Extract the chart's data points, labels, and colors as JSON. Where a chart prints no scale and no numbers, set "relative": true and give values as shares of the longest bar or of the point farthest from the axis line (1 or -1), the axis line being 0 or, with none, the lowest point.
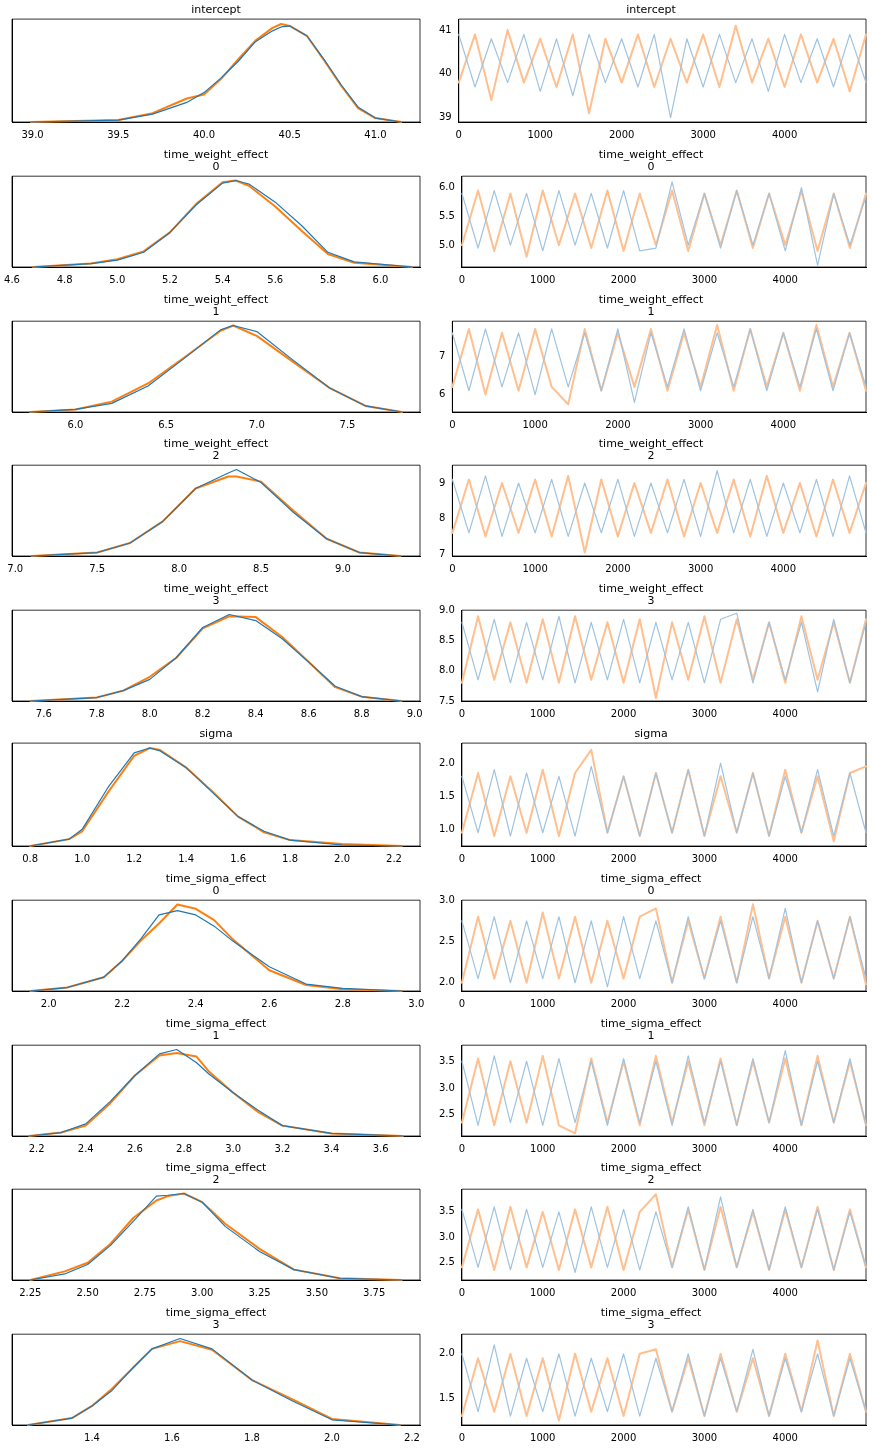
{
  "chart_data": [
    {
      "type": "line",
      "title": "intercept",
      "relative": true,
      "tick_labels": "x",
      "xlim": [
        38.88,
        41.26
      ],
      "xticks": [
        {
          "value": 39,
          "label": "39.0"
        },
        {
          "value": 39.5,
          "label": "39.5"
        },
        {
          "value": 40,
          "label": "40.0"
        },
        {
          "value": 40.5,
          "label": "40.5"
        },
        {
          "value": 41,
          "label": "41.0"
        }
      ],
      "x": [
        38.99,
        39.5,
        39.7,
        39.9,
        40.0,
        40.1,
        40.2,
        40.3,
        40.4,
        40.45,
        40.5,
        40.6,
        40.7,
        40.8,
        40.9,
        41.0,
        41.15
      ],
      "series": [
        {
          "color": "#1f77b4",
          "values": [
            0,
            0.02,
            0.08,
            0.2,
            0.3,
            0.45,
            0.62,
            0.82,
            0.93,
            0.97,
            0.98,
            0.88,
            0.64,
            0.38,
            0.15,
            0.04,
            0
          ]
        },
        {
          "color": "#ff7f0e",
          "values": [
            0,
            0.02,
            0.09,
            0.24,
            0.28,
            0.44,
            0.64,
            0.83,
            0.96,
            1.0,
            0.98,
            0.88,
            0.63,
            0.37,
            0.14,
            0.04,
            0
          ]
        }
      ]
    },
    {
      "type": "line",
      "title": "intercept",
      "xlim": [
        0,
        4999
      ],
      "xticks": [
        0,
        1000,
        2000,
        3000,
        4000
      ],
      "ylim": [
        38.9,
        41.25
      ],
      "yticks": [
        39,
        40,
        41
      ],
      "x": [
        0,
        200,
        400,
        600,
        800,
        1000,
        1200,
        1400,
        1600,
        1800,
        2000,
        2200,
        2400,
        2600,
        2800,
        3000,
        3200,
        3400,
        3600,
        3800,
        4000,
        4200,
        4400,
        4600,
        4800,
        4999
      ],
      "series": [
        {
          "color": "#9fc3e0",
          "values": [
            40.9,
            39.7,
            40.8,
            39.8,
            40.9,
            39.6,
            40.8,
            39.5,
            40.9,
            39.8,
            40.8,
            39.7,
            40.9,
            39.0,
            40.8,
            39.7,
            40.9,
            39.8,
            40.8,
            39.6,
            40.9,
            39.8,
            40.8,
            39.7,
            40.9,
            39.8
          ]
        },
        {
          "color": "#ffbf8e",
          "values": [
            39.8,
            40.9,
            39.4,
            41.0,
            39.8,
            40.8,
            39.7,
            40.9,
            39.1,
            40.8,
            39.8,
            40.9,
            39.7,
            40.8,
            39.8,
            40.9,
            39.7,
            41.1,
            39.8,
            40.8,
            39.7,
            40.9,
            39.8,
            40.8,
            39.6,
            40.9
          ]
        }
      ]
    },
    {
      "type": "line",
      "title": "time_weight_effect\n0",
      "relative": true,
      "tick_labels": "x",
      "xlim": [
        4.6,
        6.15
      ],
      "xticks": [
        {
          "value": 4.6,
          "label": "4.6"
        },
        {
          "value": 4.8,
          "label": "4.8"
        },
        {
          "value": 5,
          "label": "5.0"
        },
        {
          "value": 5.2,
          "label": "5.2"
        },
        {
          "value": 5.4,
          "label": "5.4"
        },
        {
          "value": 5.6,
          "label": "5.6"
        },
        {
          "value": 5.8,
          "label": "5.8"
        },
        {
          "value": 6,
          "label": "6.0"
        }
      ],
      "x": [
        4.68,
        4.9,
        5.0,
        5.1,
        5.2,
        5.3,
        5.4,
        5.45,
        5.5,
        5.6,
        5.7,
        5.8,
        5.9,
        6.12
      ],
      "series": [
        {
          "color": "#1f77b4",
          "values": [
            0,
            0.04,
            0.08,
            0.17,
            0.4,
            0.72,
            0.97,
            1.0,
            0.96,
            0.75,
            0.48,
            0.17,
            0.06,
            0
          ]
        },
        {
          "color": "#ff7f0e",
          "values": [
            0,
            0.04,
            0.09,
            0.18,
            0.4,
            0.73,
            0.98,
            1.0,
            0.94,
            0.7,
            0.42,
            0.15,
            0.05,
            0
          ]
        }
      ]
    },
    {
      "type": "line",
      "title": "time_weight_effect\n0",
      "xlim": [
        0,
        4999
      ],
      "xticks": [
        0,
        1000,
        2000,
        3000,
        4000
      ],
      "ylim": [
        4.62,
        6.2
      ],
      "yticks": [
        {
          "value": 5,
          "label": "5.0"
        },
        {
          "value": 5.5,
          "label": "5.5"
        },
        {
          "value": 6,
          "label": "6.0"
        }
      ],
      "x": [
        0,
        200,
        400,
        600,
        800,
        1000,
        1200,
        1400,
        1600,
        1800,
        2000,
        2200,
        2400,
        2600,
        2800,
        3000,
        3200,
        3400,
        3600,
        3800,
        4000,
        4200,
        4400,
        4600,
        4800,
        4999
      ],
      "series": [
        {
          "color": "#9fc3e0",
          "values": [
            5.9,
            4.95,
            5.95,
            5.0,
            5.9,
            4.9,
            5.95,
            5.0,
            5.9,
            4.95,
            5.95,
            4.9,
            4.95,
            6.1,
            5.0,
            5.9,
            4.95,
            5.95,
            5.0,
            5.9,
            4.9,
            6.0,
            4.65,
            5.9,
            5.0,
            5.85
          ]
        },
        {
          "color": "#ffbf8e",
          "values": [
            5.0,
            5.95,
            4.9,
            5.9,
            4.8,
            5.95,
            5.0,
            5.9,
            4.95,
            5.95,
            4.9,
            5.9,
            5.0,
            5.95,
            4.9,
            5.9,
            5.0,
            5.95,
            4.95,
            5.9,
            5.0,
            5.95,
            4.9,
            5.9,
            4.95,
            5.9
          ]
        }
      ]
    },
    {
      "type": "line",
      "title": "time_weight_effect\n1",
      "relative": true,
      "tick_labels": "x",
      "xlim": [
        5.65,
        7.9
      ],
      "xticks": [
        {
          "value": 6,
          "label": "6.0"
        },
        {
          "value": 6.5,
          "label": "6.5"
        },
        {
          "value": 7,
          "label": "7.0"
        },
        {
          "value": 7.5,
          "label": "7.5"
        }
      ],
      "x": [
        5.75,
        6.0,
        6.2,
        6.4,
        6.6,
        6.8,
        6.87,
        7.0,
        7.2,
        7.4,
        7.6,
        7.8
      ],
      "series": [
        {
          "color": "#1f77b4",
          "values": [
            0,
            0.03,
            0.1,
            0.3,
            0.62,
            0.95,
            1.0,
            0.93,
            0.6,
            0.28,
            0.07,
            0
          ]
        },
        {
          "color": "#ff7f0e",
          "values": [
            0,
            0.03,
            0.12,
            0.33,
            0.63,
            0.94,
            1.0,
            0.88,
            0.58,
            0.28,
            0.07,
            0
          ]
        }
      ]
    },
    {
      "type": "line",
      "title": "time_weight_effect\n1",
      "xlim": [
        0,
        4999
      ],
      "xticks": [
        0,
        1000,
        2000,
        3000,
        4000
      ],
      "ylim": [
        5.55,
        7.9
      ],
      "yticks": [
        6,
        7
      ],
      "x": [
        0,
        200,
        400,
        600,
        800,
        1000,
        1200,
        1400,
        1600,
        1800,
        2000,
        2200,
        2400,
        2600,
        2800,
        3000,
        3200,
        3400,
        3600,
        3800,
        4000,
        4200,
        4400,
        4600,
        4800,
        4999
      ],
      "series": [
        {
          "color": "#9fc3e0",
          "values": [
            7.6,
            6.1,
            7.7,
            6.2,
            7.6,
            6.0,
            7.7,
            6.2,
            7.6,
            6.1,
            7.7,
            5.8,
            7.6,
            6.2,
            7.7,
            6.1,
            7.6,
            6.2,
            7.7,
            6.1,
            7.6,
            6.2,
            7.7,
            6.1,
            7.6,
            6.2
          ]
        },
        {
          "color": "#ffbf8e",
          "values": [
            6.2,
            7.7,
            6.0,
            7.6,
            6.1,
            7.7,
            6.2,
            5.75,
            7.7,
            6.1,
            7.6,
            6.2,
            7.7,
            6.1,
            7.6,
            6.2,
            7.8,
            6.1,
            7.7,
            6.2,
            7.6,
            6.1,
            7.8,
            6.2,
            7.6,
            6.1
          ]
        }
      ]
    },
    {
      "type": "line",
      "title": "time_weight_effect\n2",
      "relative": true,
      "tick_labels": "x",
      "xlim": [
        6.98,
        9.47
      ],
      "xticks": [
        {
          "value": 7,
          "label": "7.0"
        },
        {
          "value": 7.5,
          "label": "7.5"
        },
        {
          "value": 8,
          "label": "8.0"
        },
        {
          "value": 8.5,
          "label": "8.5"
        },
        {
          "value": 9,
          "label": "9.0"
        }
      ],
      "x": [
        7.1,
        7.5,
        7.7,
        7.9,
        8.1,
        8.3,
        8.35,
        8.5,
        8.7,
        8.9,
        9.1,
        9.35
      ],
      "series": [
        {
          "color": "#1f77b4",
          "values": [
            0,
            0.04,
            0.15,
            0.4,
            0.78,
            0.96,
            1.0,
            0.85,
            0.5,
            0.2,
            0.04,
            0
          ]
        },
        {
          "color": "#ff7f0e",
          "values": [
            0,
            0.04,
            0.15,
            0.4,
            0.78,
            0.92,
            0.92,
            0.86,
            0.52,
            0.2,
            0.04,
            0
          ]
        }
      ]
    },
    {
      "type": "line",
      "title": "time_weight_effect\n2",
      "xlim": [
        0,
        4999
      ],
      "xticks": [
        0,
        1000,
        2000,
        3000,
        4000
      ],
      "ylim": [
        6.95,
        9.5
      ],
      "yticks": [
        7,
        8,
        9
      ],
      "x": [
        0,
        200,
        400,
        600,
        800,
        1000,
        1200,
        1400,
        1600,
        1800,
        2000,
        2200,
        2400,
        2600,
        2800,
        3000,
        3200,
        3400,
        3600,
        3800,
        4000,
        4200,
        4400,
        4600,
        4800,
        4999
      ],
      "series": [
        {
          "color": "#9fc3e0",
          "values": [
            9.1,
            7.6,
            9.2,
            7.5,
            9.0,
            7.6,
            9.1,
            7.5,
            9.0,
            7.6,
            9.1,
            7.5,
            9.0,
            7.6,
            9.1,
            7.5,
            9.35,
            7.6,
            9.1,
            7.5,
            9.0,
            7.6,
            9.1,
            7.5,
            9.2,
            7.6
          ]
        },
        {
          "color": "#ffbf8e",
          "values": [
            7.6,
            9.1,
            7.5,
            9.0,
            7.6,
            9.1,
            7.5,
            9.2,
            7.05,
            9.1,
            7.5,
            9.0,
            7.6,
            9.1,
            7.5,
            9.0,
            7.6,
            9.1,
            7.5,
            9.2,
            7.6,
            9.0,
            7.5,
            9.1,
            7.6,
            9.0
          ]
        }
      ]
    },
    {
      "type": "line",
      "title": "time_weight_effect\n3",
      "relative": true,
      "tick_labels": "x",
      "xlim": [
        7.48,
        9.02
      ],
      "xticks": [
        {
          "value": 7.6,
          "label": "7.6"
        },
        {
          "value": 7.8,
          "label": "7.8"
        },
        {
          "value": 8,
          "label": "8.0"
        },
        {
          "value": 8.2,
          "label": "8.2"
        },
        {
          "value": 8.4,
          "label": "8.4"
        },
        {
          "value": 8.6,
          "label": "8.6"
        },
        {
          "value": 8.8,
          "label": "8.8"
        },
        {
          "value": 9,
          "label": "9.0"
        }
      ],
      "x": [
        7.55,
        7.8,
        7.9,
        8.0,
        8.1,
        8.2,
        8.3,
        8.4,
        8.5,
        8.6,
        8.7,
        8.8,
        8.95
      ],
      "series": [
        {
          "color": "#1f77b4",
          "values": [
            0,
            0.04,
            0.12,
            0.25,
            0.5,
            0.85,
            1.0,
            0.93,
            0.72,
            0.45,
            0.17,
            0.05,
            0
          ]
        },
        {
          "color": "#ff7f0e",
          "values": [
            0,
            0.04,
            0.12,
            0.28,
            0.5,
            0.84,
            0.98,
            0.97,
            0.74,
            0.45,
            0.16,
            0.05,
            0
          ]
        }
      ]
    },
    {
      "type": "line",
      "title": "time_weight_effect\n3",
      "xlim": [
        0,
        4999
      ],
      "xticks": [
        0,
        1000,
        2000,
        3000,
        4000
      ],
      "ylim": [
        7.5,
        9.0
      ],
      "yticks": [
        {
          "value": 7.5,
          "label": "7.5"
        },
        {
          "value": 8,
          "label": "8.0"
        },
        {
          "value": 8.5,
          "label": "8.5"
        },
        {
          "value": 9,
          "label": "9.0"
        }
      ],
      "x": [
        0,
        200,
        400,
        600,
        800,
        1000,
        1200,
        1400,
        1600,
        1800,
        2000,
        2200,
        2400,
        2600,
        2800,
        3000,
        3200,
        3400,
        3600,
        3800,
        4000,
        4200,
        4400,
        4600,
        4800,
        4999
      ],
      "series": [
        {
          "color": "#9fc3e0",
          "values": [
            8.8,
            7.85,
            8.85,
            7.8,
            8.8,
            7.85,
            8.9,
            7.8,
            8.8,
            7.85,
            8.85,
            7.8,
            8.8,
            7.85,
            8.8,
            7.8,
            8.85,
            8.95,
            7.8,
            8.8,
            7.85,
            8.8,
            7.65,
            8.85,
            7.8,
            8.8
          ]
        },
        {
          "color": "#ffbf8e",
          "values": [
            7.8,
            8.9,
            7.85,
            8.8,
            7.8,
            8.85,
            7.8,
            8.9,
            7.85,
            8.8,
            7.8,
            8.85,
            7.55,
            8.8,
            7.85,
            8.9,
            7.8,
            8.85,
            7.85,
            8.8,
            7.8,
            8.9,
            7.85,
            8.8,
            7.8,
            8.85
          ]
        }
      ]
    },
    {
      "type": "line",
      "title": "sigma",
      "relative": true,
      "tick_labels": "x",
      "xlim": [
        0.73,
        2.3
      ],
      "xticks": [
        {
          "value": 0.8,
          "label": "0.8"
        },
        {
          "value": 1,
          "label": "1.0"
        },
        {
          "value": 1.2,
          "label": "1.2"
        },
        {
          "value": 1.4,
          "label": "1.4"
        },
        {
          "value": 1.6,
          "label": "1.6"
        },
        {
          "value": 1.8,
          "label": "1.8"
        },
        {
          "value": 2,
          "label": "2.0"
        },
        {
          "value": 2.2,
          "label": "2.2"
        }
      ],
      "x": [
        0.8,
        0.95,
        1.0,
        1.1,
        1.2,
        1.26,
        1.3,
        1.4,
        1.5,
        1.6,
        1.7,
        1.8,
        2.0,
        2.23
      ],
      "series": [
        {
          "color": "#1f77b4",
          "values": [
            0,
            0.07,
            0.17,
            0.6,
            0.95,
            1.0,
            0.97,
            0.8,
            0.55,
            0.3,
            0.15,
            0.06,
            0.01,
            0
          ]
        },
        {
          "color": "#ff7f0e",
          "values": [
            0,
            0.07,
            0.15,
            0.55,
            0.92,
            1.0,
            0.98,
            0.8,
            0.56,
            0.3,
            0.14,
            0.06,
            0.02,
            0
          ]
        }
      ]
    },
    {
      "type": "line",
      "title": "sigma",
      "xlim": [
        0,
        4999
      ],
      "xticks": [
        0,
        1000,
        2000,
        3000,
        4000
      ],
      "ylim": [
        0.75,
        2.3
      ],
      "yticks": [
        {
          "value": 1,
          "label": "1.0"
        },
        {
          "value": 1.5,
          "label": "1.5"
        },
        {
          "value": 2,
          "label": "2.0"
        }
      ],
      "x": [
        0,
        200,
        400,
        600,
        800,
        1000,
        1200,
        1400,
        1600,
        1800,
        2000,
        2200,
        2400,
        2600,
        2800,
        3000,
        3200,
        3400,
        3600,
        3800,
        4000,
        4200,
        4400,
        4600,
        4800,
        4999
      ],
      "series": [
        {
          "color": "#9fc3e0",
          "values": [
            1.8,
            0.95,
            1.9,
            0.9,
            1.85,
            0.95,
            1.8,
            0.9,
            1.95,
            0.95,
            1.8,
            0.9,
            1.85,
            0.95,
            1.9,
            0.9,
            2.0,
            0.95,
            1.85,
            0.9,
            1.8,
            0.95,
            1.9,
            0.9,
            1.85,
            0.95
          ]
        },
        {
          "color": "#ffbf8e",
          "values": [
            0.95,
            1.85,
            0.9,
            1.8,
            0.95,
            1.9,
            0.9,
            1.85,
            2.2,
            0.95,
            1.8,
            0.9,
            1.85,
            0.95,
            1.9,
            0.9,
            1.8,
            0.95,
            1.85,
            0.9,
            1.9,
            0.95,
            1.8,
            0.82,
            1.85,
            1.95
          ]
        }
      ]
    },
    {
      "type": "line",
      "title": "time_sigma_effect\n0",
      "relative": true,
      "tick_labels": "x",
      "xlim": [
        1.9,
        3.01
      ],
      "xticks": [
        {
          "value": 2,
          "label": "2.0"
        },
        {
          "value": 2.2,
          "label": "2.2"
        },
        {
          "value": 2.4,
          "label": "2.4"
        },
        {
          "value": 2.6,
          "label": "2.6"
        },
        {
          "value": 2.8,
          "label": "2.8"
        },
        {
          "value": 3,
          "label": "3.0"
        }
      ],
      "x": [
        1.95,
        2.05,
        2.15,
        2.2,
        2.25,
        2.3,
        2.35,
        2.4,
        2.45,
        2.5,
        2.6,
        2.7,
        2.8,
        2.96
      ],
      "series": [
        {
          "color": "#1f77b4",
          "values": [
            0,
            0.04,
            0.16,
            0.35,
            0.6,
            0.88,
            0.93,
            0.88,
            0.75,
            0.58,
            0.28,
            0.08,
            0.03,
            0
          ]
        },
        {
          "color": "#ff7f0e",
          "values": [
            0,
            0.04,
            0.16,
            0.35,
            0.58,
            0.78,
            1.0,
            0.95,
            0.82,
            0.6,
            0.24,
            0.07,
            0.02,
            0
          ]
        }
      ]
    },
    {
      "type": "line",
      "title": "time_sigma_effect\n0",
      "xlim": [
        0,
        4999
      ],
      "xticks": [
        0,
        1000,
        2000,
        3000,
        4000
      ],
      "ylim": [
        1.9,
        3.0
      ],
      "yticks": [
        {
          "value": 2,
          "label": "2.0"
        },
        {
          "value": 2.5,
          "label": "2.5"
        },
        {
          "value": 3,
          "label": "3.0"
        }
      ],
      "x": [
        0,
        200,
        400,
        600,
        800,
        1000,
        1200,
        1400,
        1600,
        1800,
        2000,
        2200,
        2400,
        2600,
        2800,
        3000,
        3200,
        3400,
        3600,
        3800,
        4000,
        4200,
        4400,
        4600,
        4800,
        4999
      ],
      "series": [
        {
          "color": "#9fc3e0",
          "values": [
            2.75,
            2.05,
            2.8,
            2.0,
            2.75,
            2.05,
            2.8,
            2.0,
            2.75,
            1.95,
            2.8,
            2.05,
            2.75,
            2.0,
            2.8,
            2.05,
            2.75,
            2.0,
            2.8,
            2.05,
            2.9,
            2.0,
            2.75,
            2.05,
            2.8,
            2.05
          ]
        },
        {
          "color": "#ffbf8e",
          "values": [
            2.0,
            2.8,
            2.05,
            2.75,
            2.0,
            2.85,
            2.05,
            2.8,
            2.0,
            2.75,
            2.05,
            2.8,
            2.9,
            2.0,
            2.75,
            2.05,
            2.8,
            2.0,
            2.95,
            2.05,
            2.8,
            2.0,
            2.75,
            2.05,
            2.8,
            1.98
          ]
        }
      ]
    },
    {
      "type": "line",
      "title": "time_sigma_effect\n1",
      "relative": true,
      "tick_labels": "x",
      "xlim": [
        2.1,
        3.76
      ],
      "xticks": [
        {
          "value": 2.2,
          "label": "2.2"
        },
        {
          "value": 2.4,
          "label": "2.4"
        },
        {
          "value": 2.6,
          "label": "2.6"
        },
        {
          "value": 2.8,
          "label": "2.8"
        },
        {
          "value": 3,
          "label": "3.0"
        },
        {
          "value": 3.2,
          "label": "3.2"
        },
        {
          "value": 3.4,
          "label": "3.4"
        },
        {
          "value": 3.6,
          "label": "3.6"
        }
      ],
      "x": [
        2.17,
        2.3,
        2.4,
        2.5,
        2.6,
        2.7,
        2.77,
        2.85,
        2.9,
        3.0,
        3.1,
        3.2,
        3.4,
        3.69
      ],
      "series": [
        {
          "color": "#1f77b4",
          "values": [
            0,
            0.04,
            0.14,
            0.4,
            0.7,
            0.95,
            1.0,
            0.85,
            0.72,
            0.5,
            0.3,
            0.12,
            0.03,
            0
          ]
        },
        {
          "color": "#ff7f0e",
          "values": [
            0,
            0.04,
            0.12,
            0.38,
            0.7,
            0.93,
            0.96,
            0.92,
            0.75,
            0.5,
            0.28,
            0.12,
            0.03,
            0
          ]
        }
      ]
    },
    {
      "type": "line",
      "title": "time_sigma_effect\n1",
      "xlim": [
        0,
        4999
      ],
      "xticks": [
        0,
        1000,
        2000,
        3000,
        4000
      ],
      "ylim": [
        2.1,
        3.8
      ],
      "yticks": [
        {
          "value": 2.5,
          "label": "2.5"
        },
        {
          "value": 3,
          "label": "3.0"
        },
        {
          "value": 3.5,
          "label": "3.5"
        }
      ],
      "x": [
        0,
        200,
        400,
        600,
        800,
        1000,
        1200,
        1400,
        1600,
        1800,
        2000,
        2200,
        2400,
        2600,
        2800,
        3000,
        3200,
        3400,
        3600,
        3800,
        4000,
        4200,
        4400,
        4600,
        4800,
        4999
      ],
      "series": [
        {
          "color": "#9fc3e0",
          "values": [
            3.5,
            2.3,
            3.6,
            2.35,
            3.5,
            2.3,
            3.55,
            2.35,
            3.5,
            2.3,
            3.55,
            2.35,
            3.5,
            2.3,
            3.6,
            2.35,
            3.5,
            2.3,
            3.55,
            2.35,
            3.7,
            2.3,
            3.5,
            2.35,
            3.55,
            2.3
          ]
        },
        {
          "color": "#ffbf8e",
          "values": [
            2.35,
            3.55,
            2.3,
            3.5,
            2.35,
            3.6,
            2.3,
            2.15,
            3.55,
            2.35,
            3.5,
            2.3,
            3.6,
            2.35,
            3.5,
            2.3,
            3.55,
            2.3,
            3.5,
            2.35,
            3.55,
            2.3,
            3.6,
            2.35,
            3.5,
            2.3
          ]
        }
      ]
    },
    {
      "type": "line",
      "title": "time_sigma_effect\n2",
      "relative": true,
      "tick_labels": "x",
      "xlim": [
        2.17,
        3.95
      ],
      "xticks": [
        {
          "value": 2.25,
          "label": "2.25"
        },
        {
          "value": 2.5,
          "label": "2.50"
        },
        {
          "value": 2.75,
          "label": "2.75"
        },
        {
          "value": 3,
          "label": "3.00"
        },
        {
          "value": 3.25,
          "label": "3.25"
        },
        {
          "value": 3.5,
          "label": "3.50"
        },
        {
          "value": 3.75,
          "label": "3.75"
        }
      ],
      "x": [
        2.25,
        2.4,
        2.5,
        2.6,
        2.7,
        2.8,
        2.85,
        2.92,
        3.0,
        3.1,
        3.25,
        3.4,
        3.6,
        3.87
      ],
      "series": [
        {
          "color": "#1f77b4",
          "values": [
            0,
            0.07,
            0.18,
            0.4,
            0.68,
            0.97,
            0.98,
            1.0,
            0.9,
            0.62,
            0.33,
            0.12,
            0.02,
            0
          ]
        },
        {
          "color": "#ff7f0e",
          "values": [
            0,
            0.1,
            0.2,
            0.42,
            0.72,
            0.92,
            0.97,
            1.0,
            0.9,
            0.65,
            0.36,
            0.12,
            0.02,
            0
          ]
        }
      ]
    },
    {
      "type": "line",
      "title": "time_sigma_effect\n2",
      "xlim": [
        0,
        4999
      ],
      "xticks": [
        0,
        1000,
        2000,
        3000,
        4000
      ],
      "ylim": [
        2.15,
        3.95
      ],
      "yticks": [
        {
          "value": 2.5,
          "label": "2.5"
        },
        {
          "value": 3,
          "label": "3.0"
        },
        {
          "value": 3.5,
          "label": "3.5"
        }
      ],
      "x": [
        0,
        200,
        400,
        600,
        800,
        1000,
        1200,
        1400,
        1600,
        1800,
        2000,
        2200,
        2400,
        2600,
        2800,
        3000,
        3200,
        3400,
        3600,
        3800,
        4000,
        4200,
        4400,
        4600,
        4800,
        4999
      ],
      "series": [
        {
          "color": "#9fc3e0",
          "values": [
            3.55,
            2.4,
            3.6,
            2.35,
            3.55,
            2.4,
            3.5,
            2.3,
            3.6,
            2.4,
            3.55,
            2.35,
            3.5,
            2.4,
            3.6,
            2.35,
            3.8,
            2.4,
            3.55,
            2.35,
            3.6,
            2.4,
            3.55,
            2.35,
            3.5,
            2.4
          ]
        },
        {
          "color": "#ffbf8e",
          "values": [
            2.4,
            3.55,
            2.35,
            3.6,
            2.4,
            3.5,
            2.35,
            3.55,
            2.4,
            3.6,
            2.35,
            3.5,
            3.85,
            2.4,
            3.55,
            2.35,
            3.6,
            2.4,
            3.5,
            2.35,
            3.55,
            2.4,
            3.6,
            2.35,
            3.55,
            2.4
          ]
        }
      ]
    },
    {
      "type": "line",
      "title": "time_sigma_effect\n3",
      "relative": true,
      "tick_labels": "x",
      "xlim": [
        1.2,
        2.22
      ],
      "xticks": [
        {
          "value": 1.4,
          "label": "1.4"
        },
        {
          "value": 1.6,
          "label": "1.6"
        },
        {
          "value": 1.8,
          "label": "1.8"
        },
        {
          "value": 2,
          "label": "2.0"
        },
        {
          "value": 2.2,
          "label": "2.2"
        }
      ],
      "x": [
        1.24,
        1.35,
        1.4,
        1.45,
        1.5,
        1.55,
        1.62,
        1.7,
        1.8,
        1.9,
        2.0,
        2.17
      ],
      "series": [
        {
          "color": "#1f77b4",
          "values": [
            0,
            0.08,
            0.22,
            0.4,
            0.65,
            0.88,
            1.0,
            0.88,
            0.52,
            0.28,
            0.06,
            0
          ]
        },
        {
          "color": "#ff7f0e",
          "values": [
            0,
            0.08,
            0.22,
            0.42,
            0.65,
            0.88,
            0.97,
            0.87,
            0.52,
            0.3,
            0.07,
            0
          ]
        }
      ]
    },
    {
      "type": "line",
      "title": "time_sigma_effect\n3",
      "xlim": [
        0,
        4999
      ],
      "xticks": [
        0,
        1000,
        2000,
        3000,
        4000
      ],
      "ylim": [
        1.2,
        2.22
      ],
      "yticks": [
        {
          "value": 1.5,
          "label": "1.5"
        },
        {
          "value": 2,
          "label": "2.0"
        }
      ],
      "x": [
        0,
        200,
        400,
        600,
        800,
        1000,
        1200,
        1400,
        1600,
        1800,
        2000,
        2200,
        2400,
        2600,
        2800,
        3000,
        3200,
        3400,
        3600,
        3800,
        4000,
        4200,
        4400,
        4600,
        4800,
        4999
      ],
      "series": [
        {
          "color": "#9fc3e0",
          "values": [
            2.0,
            1.35,
            2.1,
            1.3,
            1.95,
            1.35,
            2.0,
            1.3,
            1.95,
            1.35,
            2.0,
            1.3,
            1.95,
            1.35,
            2.0,
            1.3,
            1.95,
            1.35,
            2.05,
            1.3,
            1.95,
            1.35,
            2.0,
            1.3,
            1.95,
            1.35
          ]
        },
        {
          "color": "#ffbf8e",
          "values": [
            1.3,
            1.95,
            1.35,
            2.0,
            1.3,
            1.95,
            1.25,
            2.0,
            1.35,
            1.95,
            1.3,
            2.0,
            2.05,
            1.35,
            1.95,
            1.3,
            2.0,
            1.35,
            1.95,
            1.3,
            2.0,
            1.35,
            2.15,
            1.3,
            2.0,
            1.35
          ]
        }
      ]
    }
  ]
}
